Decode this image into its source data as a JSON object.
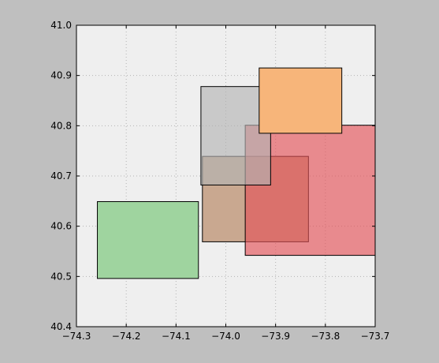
{
  "chart_data": {
    "type": "rectangles",
    "title": "",
    "xlabel": "",
    "ylabel": "",
    "xlim": [
      -74.3,
      -73.7
    ],
    "ylim": [
      40.4,
      41.0
    ],
    "x_ticks": [
      -74.3,
      -74.2,
      -74.1,
      -74.0,
      -73.9,
      -73.8,
      -73.7
    ],
    "x_tick_labels": [
      "−74.3",
      "−74.2",
      "−74.1",
      "−74.0",
      "−73.9",
      "−73.8",
      "−73.7"
    ],
    "y_ticks": [
      40.4,
      40.5,
      40.6,
      40.7,
      40.8,
      40.9,
      41.0
    ],
    "y_tick_labels": [
      "40.4",
      "40.5",
      "40.6",
      "40.7",
      "40.8",
      "40.9",
      "41.0"
    ],
    "grid": true,
    "legend": "none",
    "colors": {
      "figure_background": "#bfbfbf",
      "axes_background": "#efefef",
      "grid": "#b3b3b3"
    },
    "rectangles": [
      {
        "x0": -74.258,
        "x1": -74.055,
        "y0": 40.496,
        "y1": 40.649,
        "fill": "#9fd49f",
        "opacity": 1.0
      },
      {
        "x0": -74.047,
        "x1": -73.834,
        "y0": 40.569,
        "y1": 40.739,
        "fill": "#c9a890",
        "opacity": 1.0
      },
      {
        "x0": -73.961,
        "x1": -73.7,
        "y0": 40.542,
        "y1": 40.801,
        "fill": "#e35359",
        "opacity": 0.65
      },
      {
        "x0": -74.05,
        "x1": -73.91,
        "y0": 40.682,
        "y1": 40.878,
        "fill": "#b3b3b3",
        "opacity": 0.65
      },
      {
        "x0": -73.933,
        "x1": -73.767,
        "y0": 40.785,
        "y1": 40.915,
        "fill": "#f7b57a",
        "opacity": 1.0
      }
    ]
  }
}
